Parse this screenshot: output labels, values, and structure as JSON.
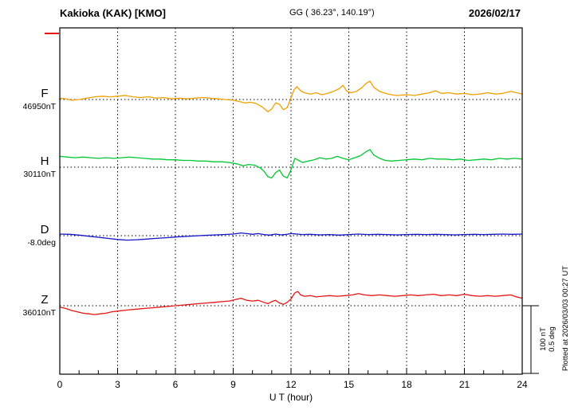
{
  "header": {
    "station": "Kakioka (KAK)  [KMO]",
    "coords": "GG ( 36.23°, 140.19°)",
    "date": "2026/02/17"
  },
  "axis": {
    "x_label": "U T (hour)",
    "x_ticks": [
      "0",
      "3",
      "6",
      "9",
      "12",
      "15",
      "18",
      "21",
      "24"
    ]
  },
  "scale": {
    "line1": "100 nT",
    "line2": "0.5 deg"
  },
  "footer_note": "Plotted at 2026/03/03 00:27 UT",
  "chart_data": {
    "type": "line",
    "title": "Kakioka (KAK) [KMO] magnetogram 2026/02/17",
    "xlabel": "U T (hour)",
    "x_range": [
      0,
      24
    ],
    "x_tick_interval_hours": 3,
    "grid": "dotted vertical lines every 3 h; dotted horizontal baseline per component",
    "scale": {
      "nT_per_division": 100,
      "deg_per_division": 0.5
    },
    "points_format": "[UT_hour, offset_from_baseline_value_in_series_unit]",
    "series": [
      {
        "name": "F",
        "unit": "nT",
        "baseline_label": "46950nT",
        "baseline_value": 46950,
        "color": "#f0a000",
        "points": [
          [
            0,
            2
          ],
          [
            0.3,
            1
          ],
          [
            0.6,
            -1
          ],
          [
            1,
            0
          ],
          [
            1.4,
            2
          ],
          [
            1.8,
            4
          ],
          [
            2.2,
            5
          ],
          [
            2.6,
            4
          ],
          [
            3,
            5
          ],
          [
            3.4,
            6
          ],
          [
            3.8,
            4
          ],
          [
            4.2,
            3
          ],
          [
            4.6,
            4
          ],
          [
            5,
            2
          ],
          [
            5.4,
            3
          ],
          [
            5.8,
            1
          ],
          [
            6.2,
            2
          ],
          [
            6.6,
            1
          ],
          [
            7,
            2
          ],
          [
            7.4,
            3
          ],
          [
            7.8,
            2
          ],
          [
            8.2,
            1
          ],
          [
            8.6,
            0
          ],
          [
            9,
            -1
          ],
          [
            9.3,
            -3
          ],
          [
            9.6,
            -5
          ],
          [
            9.9,
            -4
          ],
          [
            10.2,
            -6
          ],
          [
            10.5,
            -11
          ],
          [
            10.8,
            -18
          ],
          [
            11,
            -14
          ],
          [
            11.2,
            -5
          ],
          [
            11.4,
            -7
          ],
          [
            11.6,
            -15
          ],
          [
            11.8,
            -12
          ],
          [
            12,
            2
          ],
          [
            12.15,
            14
          ],
          [
            12.3,
            19
          ],
          [
            12.5,
            13
          ],
          [
            12.7,
            10
          ],
          [
            13,
            8
          ],
          [
            13.3,
            10
          ],
          [
            13.6,
            7
          ],
          [
            13.9,
            9
          ],
          [
            14.2,
            12
          ],
          [
            14.5,
            16
          ],
          [
            14.7,
            21
          ],
          [
            14.9,
            12
          ],
          [
            15.1,
            10
          ],
          [
            15.4,
            12
          ],
          [
            15.7,
            18
          ],
          [
            15.9,
            24
          ],
          [
            16.1,
            27
          ],
          [
            16.3,
            18
          ],
          [
            16.6,
            12
          ],
          [
            16.9,
            9
          ],
          [
            17.2,
            7
          ],
          [
            17.5,
            6
          ],
          [
            18,
            7
          ],
          [
            18.4,
            6
          ],
          [
            18.8,
            8
          ],
          [
            19.2,
            10
          ],
          [
            19.5,
            13
          ],
          [
            19.8,
            9
          ],
          [
            20.2,
            10
          ],
          [
            20.6,
            8
          ],
          [
            21,
            9
          ],
          [
            21.4,
            7
          ],
          [
            21.8,
            8
          ],
          [
            22.2,
            10
          ],
          [
            22.6,
            8
          ],
          [
            23,
            9
          ],
          [
            23.4,
            12
          ],
          [
            23.7,
            10
          ],
          [
            24,
            8
          ]
        ]
      },
      {
        "name": "H",
        "unit": "nT",
        "baseline_label": "30110nT",
        "baseline_value": 30110,
        "color": "#00c832",
        "points": [
          [
            0,
            16
          ],
          [
            0.4,
            15
          ],
          [
            0.8,
            14
          ],
          [
            1.2,
            15
          ],
          [
            1.6,
            14
          ],
          [
            2,
            13
          ],
          [
            2.4,
            14
          ],
          [
            2.8,
            13
          ],
          [
            3.2,
            14
          ],
          [
            3.6,
            15
          ],
          [
            4,
            14
          ],
          [
            4.4,
            13
          ],
          [
            4.8,
            12
          ],
          [
            5.2,
            12
          ],
          [
            5.6,
            11
          ],
          [
            6,
            11
          ],
          [
            6.4,
            10
          ],
          [
            6.8,
            10
          ],
          [
            7.2,
            9
          ],
          [
            7.6,
            9
          ],
          [
            8,
            8
          ],
          [
            8.4,
            8
          ],
          [
            8.8,
            7
          ],
          [
            9.2,
            5
          ],
          [
            9.5,
            2
          ],
          [
            9.8,
            4
          ],
          [
            10.1,
            3
          ],
          [
            10.4,
            -1
          ],
          [
            10.6,
            -6
          ],
          [
            10.8,
            -14
          ],
          [
            11,
            -16
          ],
          [
            11.2,
            -8
          ],
          [
            11.4,
            -4
          ],
          [
            11.6,
            -13
          ],
          [
            11.8,
            -16
          ],
          [
            12,
            -4
          ],
          [
            12.2,
            13
          ],
          [
            12.4,
            10
          ],
          [
            12.6,
            7
          ],
          [
            12.9,
            9
          ],
          [
            13.2,
            11
          ],
          [
            13.5,
            14
          ],
          [
            13.8,
            12
          ],
          [
            14.1,
            13
          ],
          [
            14.4,
            16
          ],
          [
            14.7,
            13
          ],
          [
            15,
            11
          ],
          [
            15.3,
            14
          ],
          [
            15.6,
            17
          ],
          [
            15.9,
            23
          ],
          [
            16.1,
            26
          ],
          [
            16.3,
            18
          ],
          [
            16.6,
            13
          ],
          [
            16.9,
            10
          ],
          [
            17.2,
            9
          ],
          [
            17.6,
            10
          ],
          [
            18,
            11
          ],
          [
            18.4,
            12
          ],
          [
            18.8,
            11
          ],
          [
            19.2,
            13
          ],
          [
            19.6,
            12
          ],
          [
            20,
            12
          ],
          [
            20.4,
            11
          ],
          [
            20.8,
            12
          ],
          [
            21.2,
            10
          ],
          [
            21.6,
            11
          ],
          [
            22,
            12
          ],
          [
            22.4,
            11
          ],
          [
            22.8,
            13
          ],
          [
            23.2,
            12
          ],
          [
            23.6,
            13
          ],
          [
            24,
            12
          ]
        ]
      },
      {
        "name": "D",
        "unit": "deg",
        "baseline_label": "-8.0deg",
        "baseline_value": -8.0,
        "color": "#1414c8",
        "points": [
          [
            0,
            0.012
          ],
          [
            0.5,
            0.01
          ],
          [
            1,
            0.004
          ],
          [
            1.5,
            -0.004
          ],
          [
            2,
            -0.012
          ],
          [
            2.5,
            -0.02
          ],
          [
            3,
            -0.028
          ],
          [
            3.5,
            -0.033
          ],
          [
            4,
            -0.03
          ],
          [
            4.5,
            -0.025
          ],
          [
            5,
            -0.02
          ],
          [
            5.5,
            -0.015
          ],
          [
            6,
            -0.01
          ],
          [
            6.5,
            -0.006
          ],
          [
            7,
            -0.002
          ],
          [
            7.5,
            0.002
          ],
          [
            8,
            0.005
          ],
          [
            8.5,
            0.008
          ],
          [
            9,
            0.012
          ],
          [
            9.4,
            0.02
          ],
          [
            9.7,
            0.015
          ],
          [
            10,
            0.01
          ],
          [
            10.3,
            0.015
          ],
          [
            10.6,
            0.008
          ],
          [
            10.9,
            0.004
          ],
          [
            11.2,
            0.012
          ],
          [
            11.5,
            0.006
          ],
          [
            11.8,
            0.01
          ],
          [
            12,
            0.016
          ],
          [
            12.3,
            0.012
          ],
          [
            12.6,
            0.008
          ],
          [
            13,
            0.01
          ],
          [
            13.5,
            0.006
          ],
          [
            14,
            0.008
          ],
          [
            14.5,
            0.004
          ],
          [
            15,
            0.008
          ],
          [
            15.5,
            0.012
          ],
          [
            16,
            0.008
          ],
          [
            16.5,
            0.01
          ],
          [
            17,
            0.008
          ],
          [
            17.5,
            0.006
          ],
          [
            18,
            0.008
          ],
          [
            18.5,
            0.01
          ],
          [
            19,
            0.008
          ],
          [
            19.5,
            0.01
          ],
          [
            20,
            0.008
          ],
          [
            20.5,
            0.006
          ],
          [
            21,
            0.008
          ],
          [
            21.5,
            0.01
          ],
          [
            22,
            0.008
          ],
          [
            22.5,
            0.01
          ],
          [
            23,
            0.012
          ],
          [
            23.5,
            0.01
          ],
          [
            24,
            0.012
          ]
        ]
      },
      {
        "name": "Z",
        "unit": "nT",
        "baseline_label": "36010nT",
        "baseline_value": 36010,
        "color": "#e81414",
        "points": [
          [
            0,
            -2
          ],
          [
            0.3,
            -4
          ],
          [
            0.6,
            -7
          ],
          [
            0.9,
            -9
          ],
          [
            1.2,
            -11
          ],
          [
            1.5,
            -12
          ],
          [
            1.8,
            -13
          ],
          [
            2.1,
            -12
          ],
          [
            2.4,
            -11
          ],
          [
            2.7,
            -9
          ],
          [
            3,
            -8
          ],
          [
            3.3,
            -7
          ],
          [
            3.6,
            -6
          ],
          [
            4,
            -5
          ],
          [
            4.4,
            -4
          ],
          [
            4.8,
            -3
          ],
          [
            5.2,
            -2
          ],
          [
            5.6,
            -1
          ],
          [
            6,
            0
          ],
          [
            6.4,
            1
          ],
          [
            6.8,
            2
          ],
          [
            7.2,
            3
          ],
          [
            7.6,
            4
          ],
          [
            8,
            5
          ],
          [
            8.4,
            6
          ],
          [
            8.8,
            7
          ],
          [
            9.1,
            9
          ],
          [
            9.4,
            11
          ],
          [
            9.7,
            8
          ],
          [
            10,
            7
          ],
          [
            10.3,
            8
          ],
          [
            10.6,
            5
          ],
          [
            10.8,
            3
          ],
          [
            11,
            6
          ],
          [
            11.2,
            8
          ],
          [
            11.4,
            4
          ],
          [
            11.6,
            2
          ],
          [
            11.8,
            5
          ],
          [
            12,
            10
          ],
          [
            12.2,
            19
          ],
          [
            12.35,
            21
          ],
          [
            12.5,
            16
          ],
          [
            12.7,
            14
          ],
          [
            13,
            15
          ],
          [
            13.3,
            13
          ],
          [
            13.6,
            14
          ],
          [
            14,
            15
          ],
          [
            14.4,
            14
          ],
          [
            14.8,
            15
          ],
          [
            15.2,
            16
          ],
          [
            15.5,
            18
          ],
          [
            15.8,
            16
          ],
          [
            16.2,
            15
          ],
          [
            16.6,
            16
          ],
          [
            17,
            15
          ],
          [
            17.4,
            14
          ],
          [
            17.8,
            15
          ],
          [
            18.2,
            16
          ],
          [
            18.6,
            15
          ],
          [
            19,
            16
          ],
          [
            19.4,
            17
          ],
          [
            19.8,
            15
          ],
          [
            20.2,
            16
          ],
          [
            20.6,
            15
          ],
          [
            21,
            17
          ],
          [
            21.4,
            15
          ],
          [
            21.8,
            14
          ],
          [
            22.2,
            15
          ],
          [
            22.6,
            14
          ],
          [
            23,
            15
          ],
          [
            23.4,
            16
          ],
          [
            23.7,
            13
          ],
          [
            24,
            11
          ]
        ]
      }
    ]
  }
}
